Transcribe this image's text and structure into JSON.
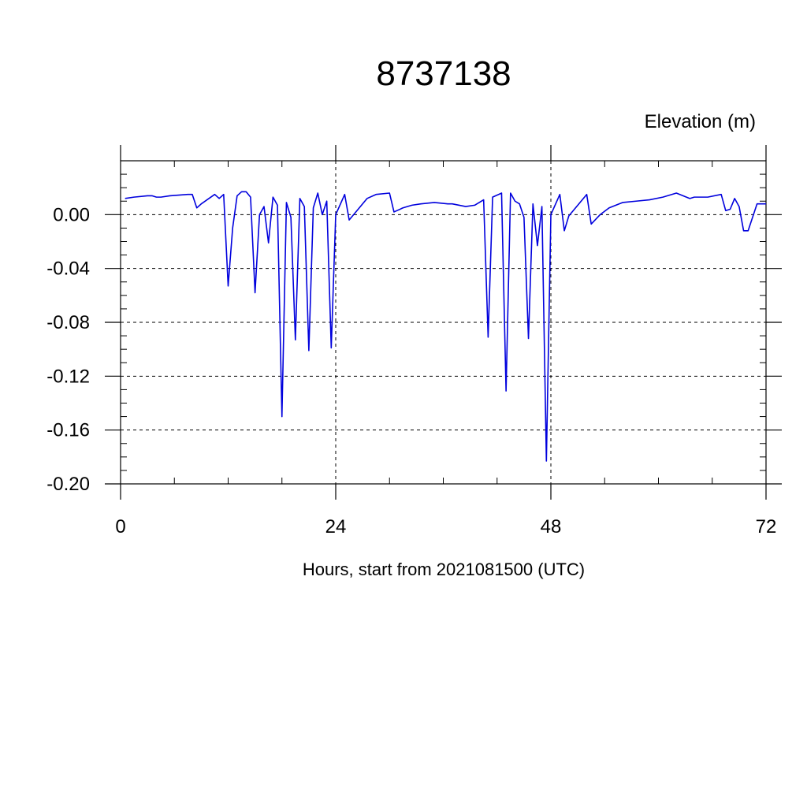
{
  "chart_data": {
    "type": "line",
    "title": "8737138",
    "ylabel": "Elevation (m)",
    "xlabel": "Hours, start from 2021081500 (UTC)",
    "xlim": [
      0,
      72
    ],
    "ylim": [
      -0.2,
      0.04
    ],
    "x_ticks": [
      0,
      24,
      48,
      72
    ],
    "x_tick_labels": [
      "0",
      "24",
      "48",
      "72"
    ],
    "y_ticks": [
      -0.2,
      -0.16,
      -0.12,
      -0.08,
      -0.04,
      0.0
    ],
    "y_tick_labels": [
      "-0.20",
      "-0.16",
      "-0.12",
      "-0.08",
      "-0.04",
      "0.00"
    ],
    "grid": "dashed at major ticks",
    "line_color": "#0000dd",
    "series": [
      {
        "x": [
          0.5,
          1.5,
          3.0,
          3.5,
          4.0,
          4.5,
          5.5,
          7.5,
          8.0,
          8.5,
          9.0,
          10.5,
          11.0,
          11.5,
          12.0,
          12.5,
          13.0,
          13.5,
          14.0,
          14.5,
          15.0,
          15.5,
          16.0,
          16.5,
          17.0,
          17.5,
          18.0,
          18.5,
          19.0,
          19.5,
          20.0,
          20.5,
          21.0,
          21.5,
          22.0,
          22.5,
          23.0,
          23.5,
          24.0,
          25.0,
          25.5,
          26.5,
          27.5,
          28.5,
          30.0,
          30.5,
          31.5,
          32.5,
          33.5,
          35.0,
          36.5,
          37.0,
          38.5,
          39.5,
          40.5,
          41.0,
          41.5,
          42.5,
          43.0,
          43.5,
          44.0,
          44.5,
          45.0,
          45.5,
          46.0,
          46.5,
          47.0,
          47.5,
          48.0,
          49.0,
          49.5,
          50.0,
          51.0,
          52.0,
          52.5,
          53.5,
          54.5,
          56.0,
          57.5,
          59.0,
          60.5,
          62.0,
          63.5,
          64.0,
          65.5,
          67.0,
          67.5,
          68.0,
          68.5,
          69.0,
          69.5,
          70.0,
          71.0,
          71.5,
          72.0
        ],
        "values": [
          0.012,
          0.013,
          0.014,
          0.014,
          0.013,
          0.013,
          0.014,
          0.015,
          0.015,
          0.005,
          0.008,
          0.015,
          0.012,
          0.015,
          -0.053,
          -0.01,
          0.014,
          0.017,
          0.017,
          0.013,
          -0.058,
          0.0,
          0.006,
          -0.021,
          0.013,
          0.007,
          -0.15,
          0.009,
          -0.002,
          -0.093,
          0.012,
          0.006,
          -0.101,
          0.005,
          0.016,
          0.0,
          0.01,
          -0.099,
          0.0,
          0.015,
          -0.004,
          0.004,
          0.012,
          0.015,
          0.016,
          0.002,
          0.005,
          0.007,
          0.008,
          0.009,
          0.008,
          0.008,
          0.006,
          0.007,
          0.011,
          -0.091,
          0.013,
          0.016,
          -0.131,
          0.016,
          0.01,
          0.008,
          -0.002,
          -0.092,
          0.008,
          -0.023,
          0.006,
          -0.183,
          0.0,
          0.015,
          -0.012,
          -0.001,
          0.007,
          0.015,
          -0.007,
          0.0,
          0.005,
          0.009,
          0.01,
          0.011,
          0.013,
          0.016,
          0.012,
          0.013,
          0.013,
          0.015,
          0.003,
          0.004,
          0.012,
          0.006,
          -0.012,
          -0.012,
          0.008,
          0.008,
          0.008
        ]
      }
    ]
  }
}
